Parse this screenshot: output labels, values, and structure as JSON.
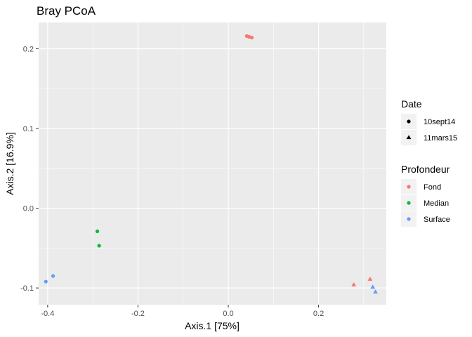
{
  "chart_data": {
    "type": "scatter",
    "title": "Bray PCoA",
    "xlabel": "Axis.1   [75%]",
    "ylabel": "Axis.2   [16.9%]",
    "xlim": [
      -0.42,
      0.35
    ],
    "ylim": [
      -0.121,
      0.233
    ],
    "x_ticks": [
      -0.4,
      -0.2,
      0.0,
      0.2
    ],
    "x_tick_labels": [
      "-0.4",
      "-0.2",
      "0.0",
      "0.2"
    ],
    "y_ticks": [
      -0.1,
      0.0,
      0.1,
      0.2
    ],
    "y_tick_labels": [
      "-0.1",
      "0.0",
      "0.1",
      "0.2"
    ],
    "grid": true,
    "legend_position": "right",
    "legends": {
      "shape": {
        "title": "Date",
        "items": [
          {
            "label": "10sept14",
            "shape": "circle"
          },
          {
            "label": "11mars15",
            "shape": "triangle"
          }
        ]
      },
      "color": {
        "title": "Profondeur",
        "items": [
          {
            "label": "Fond",
            "color": "#F8766D"
          },
          {
            "label": "Median",
            "color": "#00BA38"
          },
          {
            "label": "Surface",
            "color": "#619CFF"
          }
        ]
      }
    },
    "points": [
      {
        "x": 0.041,
        "y": 0.216,
        "date": "10sept14",
        "profondeur": "Fond"
      },
      {
        "x": 0.046,
        "y": 0.215,
        "date": "10sept14",
        "profondeur": "Fond"
      },
      {
        "x": 0.052,
        "y": 0.214,
        "date": "10sept14",
        "profondeur": "Fond"
      },
      {
        "x": -0.29,
        "y": -0.029,
        "date": "10sept14",
        "profondeur": "Median"
      },
      {
        "x": -0.286,
        "y": -0.047,
        "date": "10sept14",
        "profondeur": "Median"
      },
      {
        "x": -0.404,
        "y": -0.092,
        "date": "10sept14",
        "profondeur": "Surface"
      },
      {
        "x": -0.388,
        "y": -0.085,
        "date": "10sept14",
        "profondeur": "Surface"
      },
      {
        "x": 0.278,
        "y": -0.096,
        "date": "11mars15",
        "profondeur": "Fond"
      },
      {
        "x": 0.314,
        "y": -0.089,
        "date": "11mars15",
        "profondeur": "Fond"
      },
      {
        "x": 0.32,
        "y": -0.099,
        "date": "11mars15",
        "profondeur": "Surface"
      },
      {
        "x": 0.326,
        "y": -0.105,
        "date": "11mars15",
        "profondeur": "Surface"
      }
    ]
  }
}
